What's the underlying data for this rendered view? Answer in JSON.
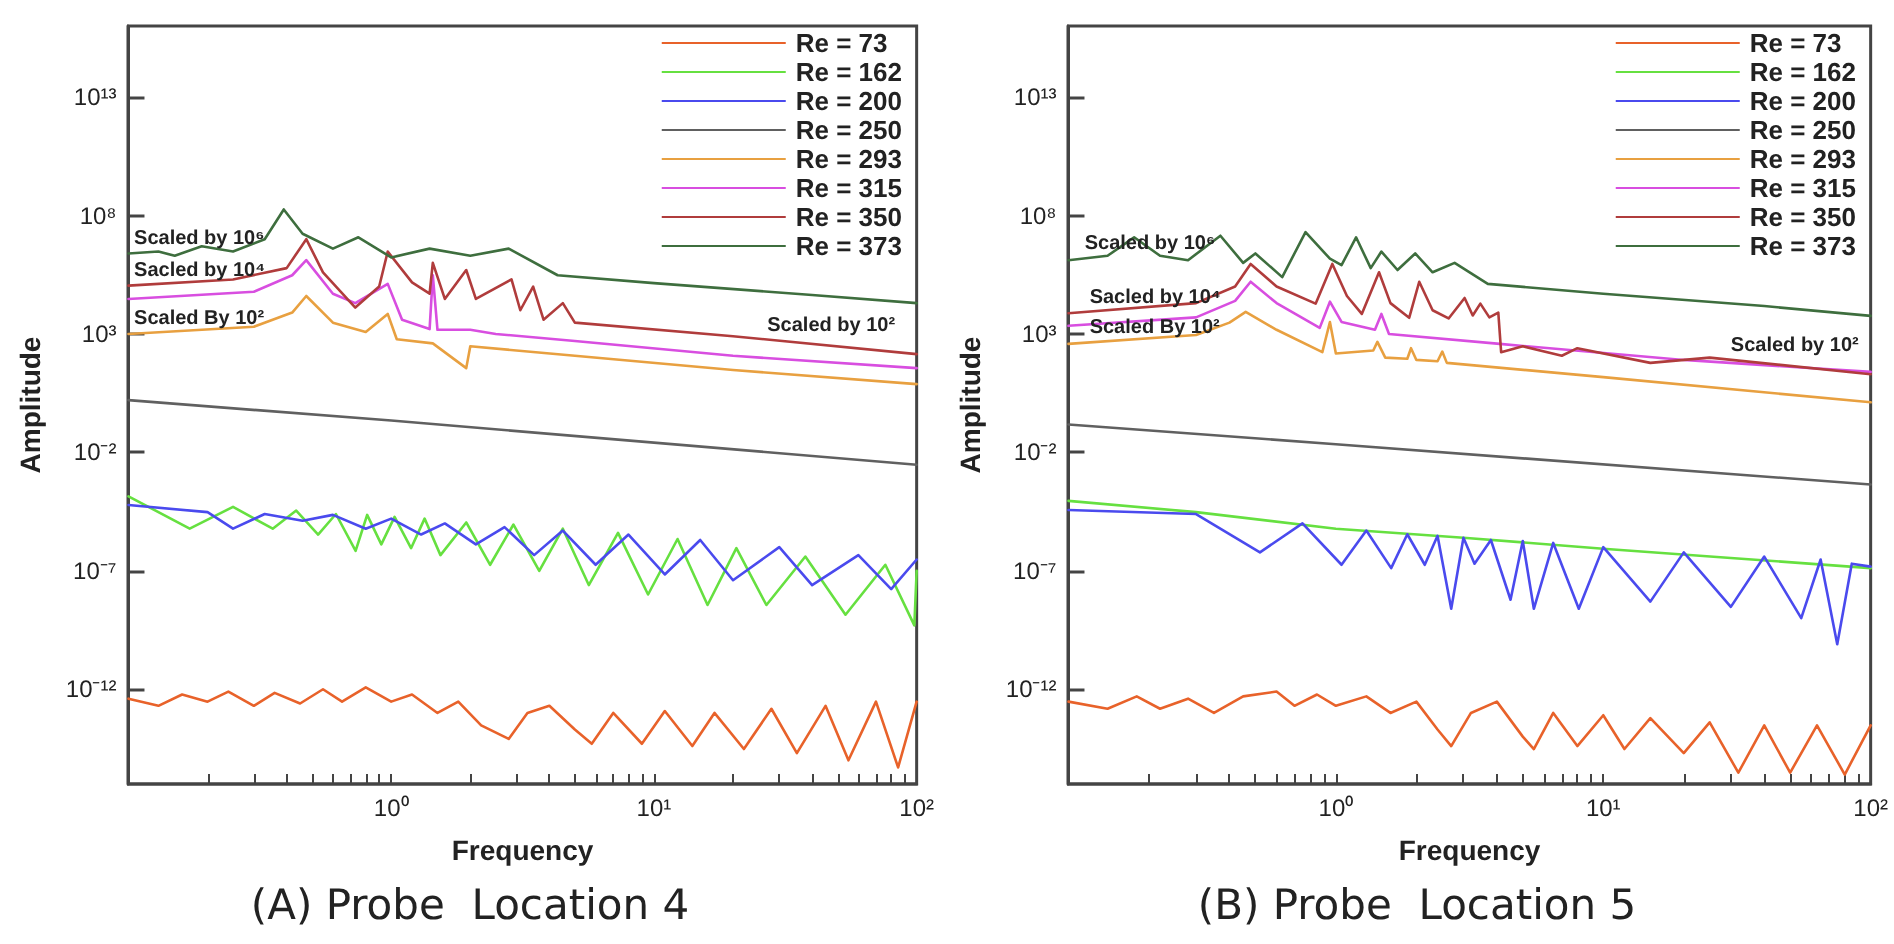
{
  "chart_data": [
    {
      "type": "line",
      "title": "(A) Probe  Location 4",
      "xlabel": "Frequency",
      "ylabel": "Amplitude",
      "log": "xy",
      "legend": "top right",
      "marker": "none",
      "xlim": [
        0.1,
        100
      ],
      "ylim": [
        1e-16,
        1e+16
      ],
      "xticks": [
        {
          "value": 0.2,
          "label": null
        },
        {
          "value": 0.3,
          "label": null
        },
        {
          "value": 0.4,
          "label": null
        },
        {
          "value": 0.5,
          "label": null
        },
        {
          "value": 0.6,
          "label": null
        },
        {
          "value": 0.7,
          "label": null
        },
        {
          "value": 0.8,
          "label": null
        },
        {
          "value": 0.9,
          "label": null
        },
        {
          "value": 1,
          "label": "10⁰"
        },
        {
          "value": 2,
          "label": null
        },
        {
          "value": 3,
          "label": null
        },
        {
          "value": 4,
          "label": null
        },
        {
          "value": 5,
          "label": null
        },
        {
          "value": 6,
          "label": null
        },
        {
          "value": 7,
          "label": null
        },
        {
          "value": 8,
          "label": null
        },
        {
          "value": 9,
          "label": null
        },
        {
          "value": 10,
          "label": "10¹"
        },
        {
          "value": 20,
          "label": null
        },
        {
          "value": 30,
          "label": null
        },
        {
          "value": 40,
          "label": null
        },
        {
          "value": 50,
          "label": null
        },
        {
          "value": 60,
          "label": null
        },
        {
          "value": 70,
          "label": null
        },
        {
          "value": 80,
          "label": null
        },
        {
          "value": 90,
          "label": null
        },
        {
          "value": 100,
          "label": "10²"
        }
      ],
      "yticks": [
        {
          "value": 1e-12,
          "label": "10⁻¹²"
        },
        {
          "value": 1e-07,
          "label": "10⁻⁷"
        },
        {
          "value": 0.01,
          "label": "10⁻²"
        },
        {
          "value": 1000,
          "label": "10³"
        },
        {
          "value": 100000000.0,
          "label": "10⁸"
        },
        {
          "value": 10000000000000.0,
          "label": "10¹³"
        }
      ],
      "annotations": [
        {
          "text": "Scaled by 10⁶",
          "x": 0.105,
          "y": 2600000.0
        },
        {
          "text": "Sacled by 10⁴",
          "x": 0.105,
          "y": 115000.0
        },
        {
          "text": "Scaled By 10²",
          "x": 0.105,
          "y": 1050
        },
        {
          "text": "Scaled by 10²",
          "x": 27,
          "y": 580
        }
      ],
      "series": [
        {
          "name": "Re = 73",
          "color": "#e8622a",
          "x": [
            0.1,
            0.13,
            0.16,
            0.2,
            0.24,
            0.3,
            0.36,
            0.45,
            0.55,
            0.65,
            0.8,
            1.0,
            1.2,
            1.5,
            1.8,
            2.2,
            2.8,
            3.3,
            4,
            5,
            5.8,
            7,
            9,
            11,
            14,
            17,
            22,
            28,
            35,
            45,
            55,
            70,
            85,
            100
          ],
          "values": [
            4e-13,
            2e-13,
            6e-13,
            3e-13,
            8e-13,
            2e-13,
            7e-13,
            2.5e-13,
            1e-12,
            3e-13,
            1.2e-12,
            3e-13,
            6e-13,
            1e-13,
            3e-13,
            3e-14,
            8e-15,
            1e-13,
            2e-13,
            2e-14,
            5e-15,
            1e-13,
            5e-15,
            1.2e-13,
            4e-15,
            1e-13,
            3e-15,
            1.5e-13,
            2e-15,
            2e-13,
            1e-15,
            3e-13,
            5e-16,
            3e-13
          ]
        },
        {
          "name": "Re = 162",
          "color": "#66e040",
          "x": [
            0.1,
            0.171,
            0.25,
            0.354,
            0.435,
            0.527,
            0.616,
            0.732,
            0.81,
            0.917,
            1.03,
            1.19,
            1.34,
            1.54,
            1.93,
            2.38,
            2.92,
            3.66,
            4.5,
            5.65,
            7.3,
            9.5,
            12.3,
            16,
            20.6,
            26.8,
            37.7,
            53.6,
            76,
            98,
            100
          ],
          "values": [
            0.00014,
            6e-06,
            5e-05,
            6e-06,
            3.5e-05,
            3.4e-06,
            2.5e-05,
            7e-07,
            2.3e-05,
            1.3e-06,
            1.9e-05,
            9e-07,
            1.6e-05,
            4.6e-07,
            1.1e-05,
            1.8e-07,
            9e-06,
            1e-07,
            6e-06,
            2.5e-08,
            4e-06,
            1e-08,
            2.2e-06,
            3.6e-09,
            9e-07,
            3.6e-09,
            4e-07,
            1.4e-09,
            1.8e-07,
            5e-10,
            1e-07
          ]
        },
        {
          "name": "Re = 200",
          "color": "#4a4aee",
          "x": [
            0.1,
            0.2,
            0.25,
            0.33,
            0.46,
            0.6,
            0.8,
            1.0,
            1.3,
            1.6,
            2.1,
            2.7,
            3.5,
            4.5,
            6,
            8,
            11,
            15,
            20,
            30,
            40,
            60,
            80,
            100
          ],
          "values": [
            6e-05,
            3e-05,
            6e-06,
            2.5e-05,
            1.3e-05,
            2.3e-05,
            6e-06,
            1.6e-05,
            3.4e-06,
            1e-05,
            1.3e-06,
            7e-06,
            4.6e-07,
            5e-06,
            1.8e-07,
            3.4e-06,
            7e-08,
            2e-06,
            4e-08,
            1e-06,
            2.5e-08,
            4.6e-07,
            1.7e-08,
            3e-07
          ]
        },
        {
          "name": "Re = 250",
          "color": "#606060",
          "x": [
            0.1,
            1,
            100
          ],
          "values": [
            1.6,
            0.22,
            0.003
          ]
        },
        {
          "name": "Re = 293",
          "color": "#e8a040",
          "x": [
            0.1,
            0.3,
            0.42,
            0.475,
            0.6,
            0.8,
            0.97,
            1.05,
            1.44,
            1.93,
            2.0,
            5,
            20,
            100
          ],
          "values": [
            1000,
            2000,
            8000,
            40000.0,
            3000,
            1200,
            7000,
            600,
            400,
            36,
            300,
            120,
            30,
            7.6
          ]
        },
        {
          "name": "Re = 315",
          "color": "#d84ee0",
          "x": [
            0.1,
            0.3,
            0.42,
            0.475,
            0.6,
            0.73,
            0.97,
            1.1,
            1.4,
            1.44,
            1.5,
            2,
            2.5,
            5,
            20,
            100
          ],
          "values": [
            30000.0,
            60000.0,
            300000.0,
            1300000.0,
            50000.0,
            20000.0,
            130000.0,
            4000,
            1600,
            300000.0,
            1500,
            1500,
            1000,
            500,
            120,
            36
          ]
        },
        {
          "name": "Re = 350",
          "color": "#b03c3c",
          "x": [
            0.1,
            0.25,
            0.4,
            0.475,
            0.55,
            0.73,
            0.9,
            0.97,
            1.2,
            1.4,
            1.44,
            1.6,
            1.93,
            2.1,
            2.87,
            3.1,
            3.47,
            3.8,
            4.5,
            5,
            20,
            100
          ],
          "values": [
            110000.0,
            200000.0,
            600000.0,
            10000000.0,
            400000.0,
            13000.0,
            100000.0,
            3000000.0,
            150000.0,
            50000.0,
            1000000.0,
            30000.0,
            500000.0,
            30000.0,
            200000.0,
            10000.0,
            100000.0,
            4000,
            20000.0,
            3000,
            800,
            140
          ]
        },
        {
          "name": "Re = 373",
          "color": "#3e6e3e",
          "x": [
            0.1,
            0.13,
            0.15,
            0.19,
            0.25,
            0.33,
            0.39,
            0.46,
            0.6,
            0.75,
            1,
            1.4,
            2,
            2.8,
            4.3,
            10,
            40,
            100
          ],
          "values": [
            2500000.0,
            3000000.0,
            2000000.0,
            5000000.0,
            3000000.0,
            10000000.0,
            180000000.0,
            17000000.0,
            4000000.0,
            12000000.0,
            1700000.0,
            4000000.0,
            2000000.0,
            4000000.0,
            300000.0,
            140000.0,
            44000.0,
            20000.0
          ]
        }
      ]
    },
    {
      "type": "line",
      "title": "(B) Probe  Location 5",
      "xlabel": "Frequency",
      "ylabel": "Amplitude",
      "log": "xy",
      "legend": "top right",
      "marker": "none",
      "xlim": [
        0.1,
        100
      ],
      "ylim": [
        1e-16,
        1e+16
      ],
      "xticks": [
        {
          "value": 0.2,
          "label": null
        },
        {
          "value": 0.3,
          "label": null
        },
        {
          "value": 0.4,
          "label": null
        },
        {
          "value": 0.5,
          "label": null
        },
        {
          "value": 0.6,
          "label": null
        },
        {
          "value": 0.7,
          "label": null
        },
        {
          "value": 0.8,
          "label": null
        },
        {
          "value": 0.9,
          "label": null
        },
        {
          "value": 1,
          "label": "10⁰"
        },
        {
          "value": 2,
          "label": null
        },
        {
          "value": 3,
          "label": null
        },
        {
          "value": 4,
          "label": null
        },
        {
          "value": 5,
          "label": null
        },
        {
          "value": 6,
          "label": null
        },
        {
          "value": 7,
          "label": null
        },
        {
          "value": 8,
          "label": null
        },
        {
          "value": 9,
          "label": null
        },
        {
          "value": 10,
          "label": "10¹"
        },
        {
          "value": 20,
          "label": null
        },
        {
          "value": 30,
          "label": null
        },
        {
          "value": 40,
          "label": null
        },
        {
          "value": 50,
          "label": null
        },
        {
          "value": 60,
          "label": null
        },
        {
          "value": 70,
          "label": null
        },
        {
          "value": 80,
          "label": null
        },
        {
          "value": 90,
          "label": null
        },
        {
          "value": 100,
          "label": "10²"
        }
      ],
      "yticks": [
        {
          "value": 1e-12,
          "label": "10⁻¹²"
        },
        {
          "value": 1e-07,
          "label": "10⁻⁷"
        },
        {
          "value": 0.01,
          "label": "10⁻²"
        },
        {
          "value": 1000,
          "label": "10³"
        },
        {
          "value": 100000000.0,
          "label": "10⁸"
        },
        {
          "value": 10000000000000.0,
          "label": "10¹³"
        }
      ],
      "annotations": [
        {
          "text": "Scaled by 10⁶",
          "x": 0.115,
          "y": 1550000.0
        },
        {
          "text": "Sacled by 10⁴",
          "x": 0.12,
          "y": 8800
        },
        {
          "text": "Scaled By 10²",
          "x": 0.12,
          "y": 440
        },
        {
          "text": "Scaled by 10²",
          "x": 30,
          "y": 81
        }
      ],
      "series": [
        {
          "name": "Re = 73",
          "color": "#e8622a",
          "x": [
            0.1,
            0.14,
            0.18,
            0.22,
            0.28,
            0.35,
            0.45,
            0.6,
            0.7,
            0.85,
            1.0,
            1.3,
            1.6,
            2.0,
            2.4,
            2.7,
            3.2,
            4,
            5,
            5.5,
            6.5,
            8,
            10,
            12,
            15,
            20,
            25,
            32,
            40,
            50,
            63,
            80,
            100
          ],
          "values": [
            3e-13,
            1.5e-13,
            5e-13,
            1.5e-13,
            4e-13,
            1e-13,
            5e-13,
            8e-13,
            2e-13,
            6e-13,
            2e-13,
            5e-13,
            1e-13,
            3e-13,
            2e-14,
            4e-15,
            1e-13,
            3e-13,
            1e-14,
            3e-15,
            1e-13,
            4e-15,
            8e-14,
            3e-15,
            6e-14,
            2e-15,
            4e-14,
            3e-16,
            3e-14,
            3e-16,
            3e-14,
            2.5e-16,
            3e-14
          ]
        },
        {
          "name": "Re = 162",
          "color": "#66e040",
          "x": [
            0.1,
            0.3,
            1,
            3,
            10,
            30,
            100
          ],
          "values": [
            9e-05,
            3e-05,
            6e-06,
            2.5e-06,
            8.5e-07,
            3.5e-07,
            1.3e-07
          ]
        },
        {
          "name": "Re = 200",
          "color": "#4a4aee",
          "x": [
            0.1,
            0.3,
            0.52,
            0.75,
            1.05,
            1.3,
            1.61,
            1.85,
            2.15,
            2.4,
            2.7,
            3.0,
            3.3,
            3.8,
            4.5,
            5,
            5.5,
            6.5,
            8.1,
            10,
            15,
            20,
            30,
            40,
            55,
            65,
            75,
            85,
            100
          ],
          "values": [
            3.7e-05,
            2.5e-05,
            6e-07,
            1e-05,
            1.8e-07,
            5e-06,
            1.3e-07,
            3.5e-06,
            1.8e-07,
            3e-06,
            2.5e-09,
            2.5e-06,
            2e-07,
            2e-06,
            6e-09,
            1.8e-06,
            2.5e-09,
            1.5e-06,
            2.5e-09,
            1e-06,
            5e-09,
            6e-07,
            3e-09,
            4e-07,
            1e-09,
            3e-07,
            8e-11,
            2e-07,
            1.5e-07
          ]
        },
        {
          "name": "Re = 250",
          "color": "#606060",
          "x": [
            0.1,
            1,
            100
          ],
          "values": [
            0.15,
            0.022,
            0.00044
          ]
        },
        {
          "name": "Re = 293",
          "color": "#e8a040",
          "x": [
            0.1,
            0.3,
            0.4,
            0.46,
            0.6,
            0.89,
            0.95,
            1.0,
            1.38,
            1.43,
            1.53,
            1.85,
            1.91,
            2.0,
            2.4,
            2.5,
            2.6,
            10,
            100
          ],
          "values": [
            380,
            900,
            3000,
            8500,
            1500,
            170,
            3200,
            150,
            200,
            460,
            100,
            90,
            250,
            80,
            70,
            180,
            60,
            15,
            1.3
          ]
        },
        {
          "name": "Re = 315",
          "color": "#d84ee0",
          "x": [
            0.1,
            0.3,
            0.42,
            0.48,
            0.6,
            0.87,
            0.95,
            1.05,
            1.4,
            1.48,
            1.58,
            4.1,
            20,
            100
          ],
          "values": [
            2200,
            5000,
            25000.0,
            160000.0,
            20000.0,
            1800,
            23000.0,
            3200,
            1500,
            7000,
            1000,
            380,
            80,
            25
          ]
        },
        {
          "name": "Re = 350",
          "color": "#b03c3c",
          "x": [
            0.1,
            0.3,
            0.42,
            0.48,
            0.6,
            0.84,
            0.97,
            1.1,
            1.25,
            1.45,
            1.6,
            1.88,
            2.05,
            2.3,
            2.64,
            3.03,
            3.25,
            3.47,
            3.75,
            4.05,
            4.15,
            5,
            7,
            8,
            15,
            25,
            100
          ],
          "values": [
            7500,
            20000.0,
            100000.0,
            900000.0,
            100000.0,
            19000.0,
            900000.0,
            40000.0,
            7000,
            400000.0,
            20000.0,
            4800,
            160000.0,
            10000.0,
            4500,
            33000.0,
            6000,
            19000.0,
            5000,
            8000,
            170,
            300,
            120,
            250,
            60,
            100,
            20
          ]
        },
        {
          "name": "Re = 373",
          "color": "#3e6e3e",
          "x": [
            0.1,
            0.14,
            0.176,
            0.22,
            0.28,
            0.37,
            0.45,
            0.5,
            0.63,
            0.77,
            0.95,
            1.05,
            1.19,
            1.35,
            1.48,
            1.7,
            1.98,
            2.3,
            2.78,
            3.7,
            10,
            40,
            100
          ],
          "values": [
            1300000.0,
            2000000.0,
            12000000.0,
            2000000.0,
            1300000.0,
            14000000.0,
            1000000.0,
            2500000.0,
            250000.0,
            20000000.0,
            1500000.0,
            800000.0,
            12000000.0,
            600000.0,
            3000000.0,
            500000.0,
            2500000.0,
            400000.0,
            1000000.0,
            130000.0,
            50000.0,
            15000.0,
            5800
          ]
        }
      ]
    }
  ]
}
